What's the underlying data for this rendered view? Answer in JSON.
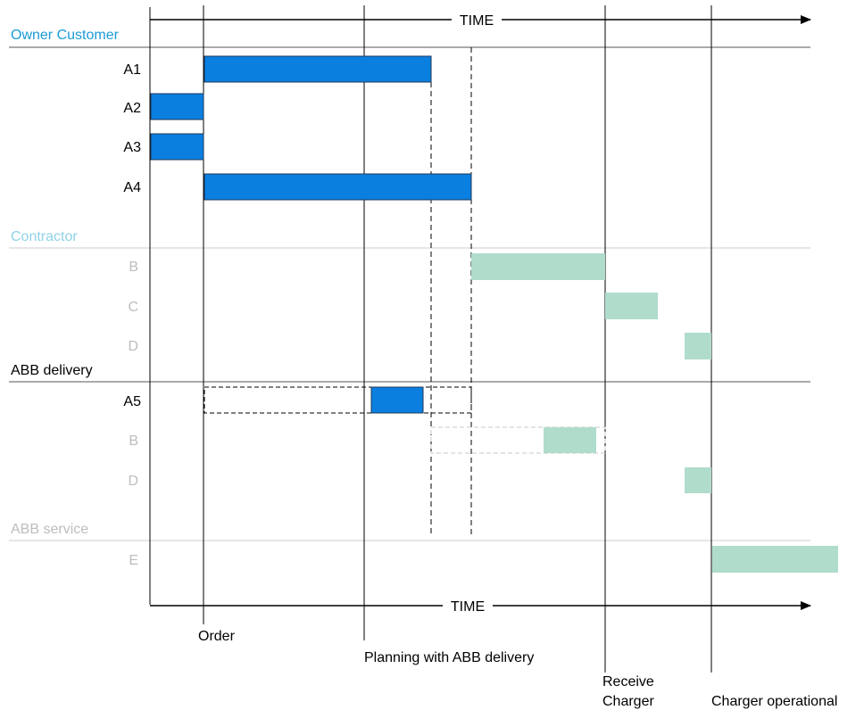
{
  "time_label_top": "TIME",
  "time_label_bottom": "TIME",
  "colors": {
    "owner_title": "#1a9ad6",
    "contractor_title": "#8fd1e6",
    "muted_text": "#bdbdbd",
    "owner_bar": "#0a7fe0",
    "contractor_bar": "#b0dccb",
    "axis": "#000000",
    "divider": "#cccccc"
  },
  "sections": {
    "owner": "Owner Customer",
    "contractor": "Contractor",
    "delivery": "ABB delivery",
    "service": "ABB service"
  },
  "rows": {
    "a1": "A1",
    "a2": "A2",
    "a3": "A3",
    "a4": "A4",
    "b": "B",
    "c": "C",
    "d": "D",
    "a5": "A5",
    "b2": "B",
    "d2": "D",
    "e": "E"
  },
  "milestones": {
    "order": "Order",
    "planning": "Planning with ABB delivery",
    "receive_1": "Receive",
    "receive_2": "Charger",
    "operational": "Charger operational"
  }
}
